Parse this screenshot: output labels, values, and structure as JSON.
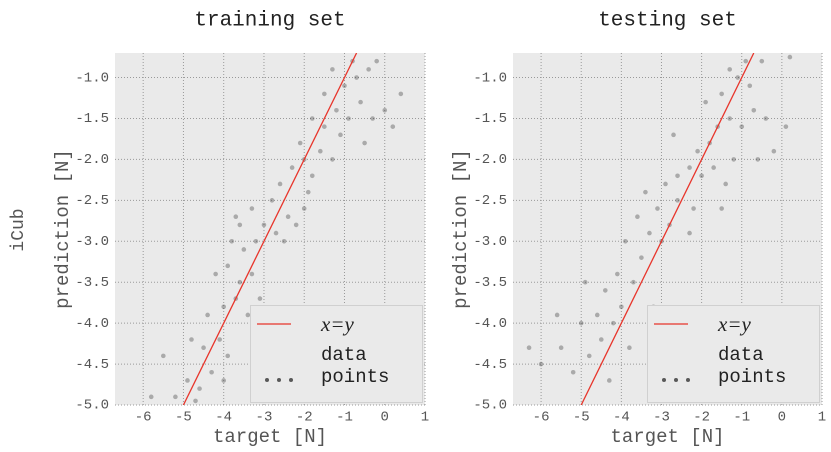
{
  "row_label": "iCub",
  "chart_data": [
    {
      "type": "scatter",
      "title": "training set",
      "x_label": "target [N]",
      "y_label": "prediction [N]",
      "xlim": [
        -6.7,
        1
      ],
      "ylim": [
        -5,
        -0.7
      ],
      "xticks": [
        -6,
        -5,
        -4,
        -3,
        -2,
        -1,
        0,
        1
      ],
      "yticks": [
        {
          "value": -1,
          "label": "-1.0"
        },
        -1.5,
        {
          "value": -2,
          "label": "-2.0"
        },
        -2.5,
        {
          "value": -3,
          "label": "-3.0"
        },
        -3.5,
        {
          "value": -4,
          "label": "-4.0"
        },
        -4.5,
        {
          "value": -5,
          "label": "-5.0"
        }
      ],
      "grid": true,
      "legend": "lower right",
      "series": [
        {
          "name": "x=y",
          "color": "#e8352b",
          "mode": "line",
          "x": [
            -5,
            -0.7
          ],
          "values": [
            -5,
            -0.7
          ]
        },
        {
          "name": "data points",
          "color": "#333333",
          "mode": "markers",
          "x": [
            -5.2,
            -4.9,
            -4.6,
            -4.3,
            -5.5,
            -4.8,
            -4.5,
            -4.1,
            -3.9,
            -4.4,
            -4.0,
            -3.7,
            -3.4,
            -3.6,
            -4.2,
            -3.9,
            -3.3,
            -3.5,
            -3.8,
            -3.2,
            -3.6,
            -3.0,
            -2.7,
            -2.4,
            -2.2,
            -3.3,
            -2.8,
            -2.0,
            -3.7,
            -2.5,
            -2.3,
            -2.0,
            -1.8,
            -1.6,
            -1.3,
            -2.1,
            -1.5,
            -1.1,
            -1.8,
            -1.2,
            -0.9,
            -0.6,
            -0.3,
            0.0,
            0.2,
            -1.0,
            -0.7,
            -0.4,
            -1.3,
            -0.8,
            -0.2,
            -1.5,
            -2.6,
            -4.7,
            -3.1,
            -1.9,
            -0.5,
            0.4,
            -5.8,
            -4.0
          ],
          "values": [
            -4.9,
            -4.7,
            -4.8,
            -4.6,
            -4.4,
            -4.2,
            -4.3,
            -4.2,
            -4.4,
            -3.9,
            -3.8,
            -3.7,
            -3.9,
            -3.5,
            -3.4,
            -3.3,
            -3.4,
            -3.1,
            -3.0,
            -3.0,
            -2.8,
            -2.8,
            -2.9,
            -2.7,
            -2.8,
            -2.6,
            -2.5,
            -2.6,
            -2.7,
            -3.0,
            -2.1,
            -2.0,
            -2.2,
            -1.9,
            -2.0,
            -1.8,
            -1.6,
            -1.7,
            -1.5,
            -1.4,
            -1.5,
            -1.3,
            -1.5,
            -1.4,
            -1.6,
            -1.1,
            -1.0,
            -0.9,
            -0.9,
            -0.8,
            -0.8,
            -1.2,
            -2.3,
            -4.95,
            -3.7,
            -2.4,
            -1.8,
            -1.2,
            -4.9,
            -4.7
          ]
        }
      ]
    },
    {
      "type": "scatter",
      "title": "testing set",
      "x_label": "target [N]",
      "y_label": "prediction [N]",
      "xlim": [
        -6.7,
        1
      ],
      "ylim": [
        -5,
        -0.7
      ],
      "xticks": [
        -6,
        -5,
        -4,
        -3,
        -2,
        -1,
        0,
        1
      ],
      "yticks": [
        {
          "value": -1,
          "label": "-1.0"
        },
        -1.5,
        {
          "value": -2,
          "label": "-2.0"
        },
        -2.5,
        {
          "value": -3,
          "label": "-3.0"
        },
        -3.5,
        {
          "value": -4,
          "label": "-4.0"
        },
        -4.5,
        {
          "value": -5,
          "label": "-5.0"
        }
      ],
      "grid": true,
      "legend": "lower right",
      "series": [
        {
          "name": "x=y",
          "color": "#e8352b",
          "mode": "line",
          "x": [
            -5,
            -0.7
          ],
          "values": [
            -5,
            -0.7
          ]
        },
        {
          "name": "data points",
          "color": "#333333",
          "mode": "markers",
          "x": [
            -6.0,
            -5.5,
            -5.2,
            -4.8,
            -4.5,
            -5.0,
            -4.6,
            -4.2,
            -4.0,
            -3.8,
            -4.4,
            -4.1,
            -3.7,
            -3.5,
            -3.9,
            -3.3,
            -3.0,
            -3.6,
            -3.1,
            -2.8,
            -2.6,
            -2.3,
            -2.9,
            -2.6,
            -2.3,
            -2.0,
            -1.7,
            -1.4,
            -2.1,
            -1.8,
            -1.2,
            -1.6,
            -1.3,
            -1.0,
            -0.7,
            -0.4,
            -1.9,
            -1.5,
            -1.1,
            -0.8,
            -1.3,
            -0.9,
            -0.5,
            0.2,
            -0.2,
            0.1,
            -4.9,
            -5.6,
            -3.2,
            -2.2,
            -2.7,
            -1.5,
            -4.3,
            -6.3,
            -3.4,
            -0.6
          ],
          "values": [
            -4.5,
            -4.3,
            -4.6,
            -4.4,
            -4.2,
            -4.0,
            -3.9,
            -4.0,
            -3.8,
            -4.3,
            -3.6,
            -3.4,
            -3.5,
            -3.2,
            -3.0,
            -2.9,
            -3.0,
            -2.7,
            -2.6,
            -2.8,
            -2.5,
            -2.9,
            -2.3,
            -2.2,
            -2.1,
            -2.2,
            -2.1,
            -2.3,
            -1.9,
            -1.8,
            -2.0,
            -1.6,
            -1.5,
            -1.6,
            -1.4,
            -1.5,
            -1.3,
            -1.2,
            -1.0,
            -1.1,
            -0.9,
            -0.8,
            -0.8,
            -0.75,
            -1.9,
            -1.6,
            -3.5,
            -3.9,
            -3.8,
            -2.6,
            -1.7,
            -2.6,
            -4.7,
            -4.3,
            -2.4,
            -2.0
          ]
        }
      ]
    }
  ]
}
